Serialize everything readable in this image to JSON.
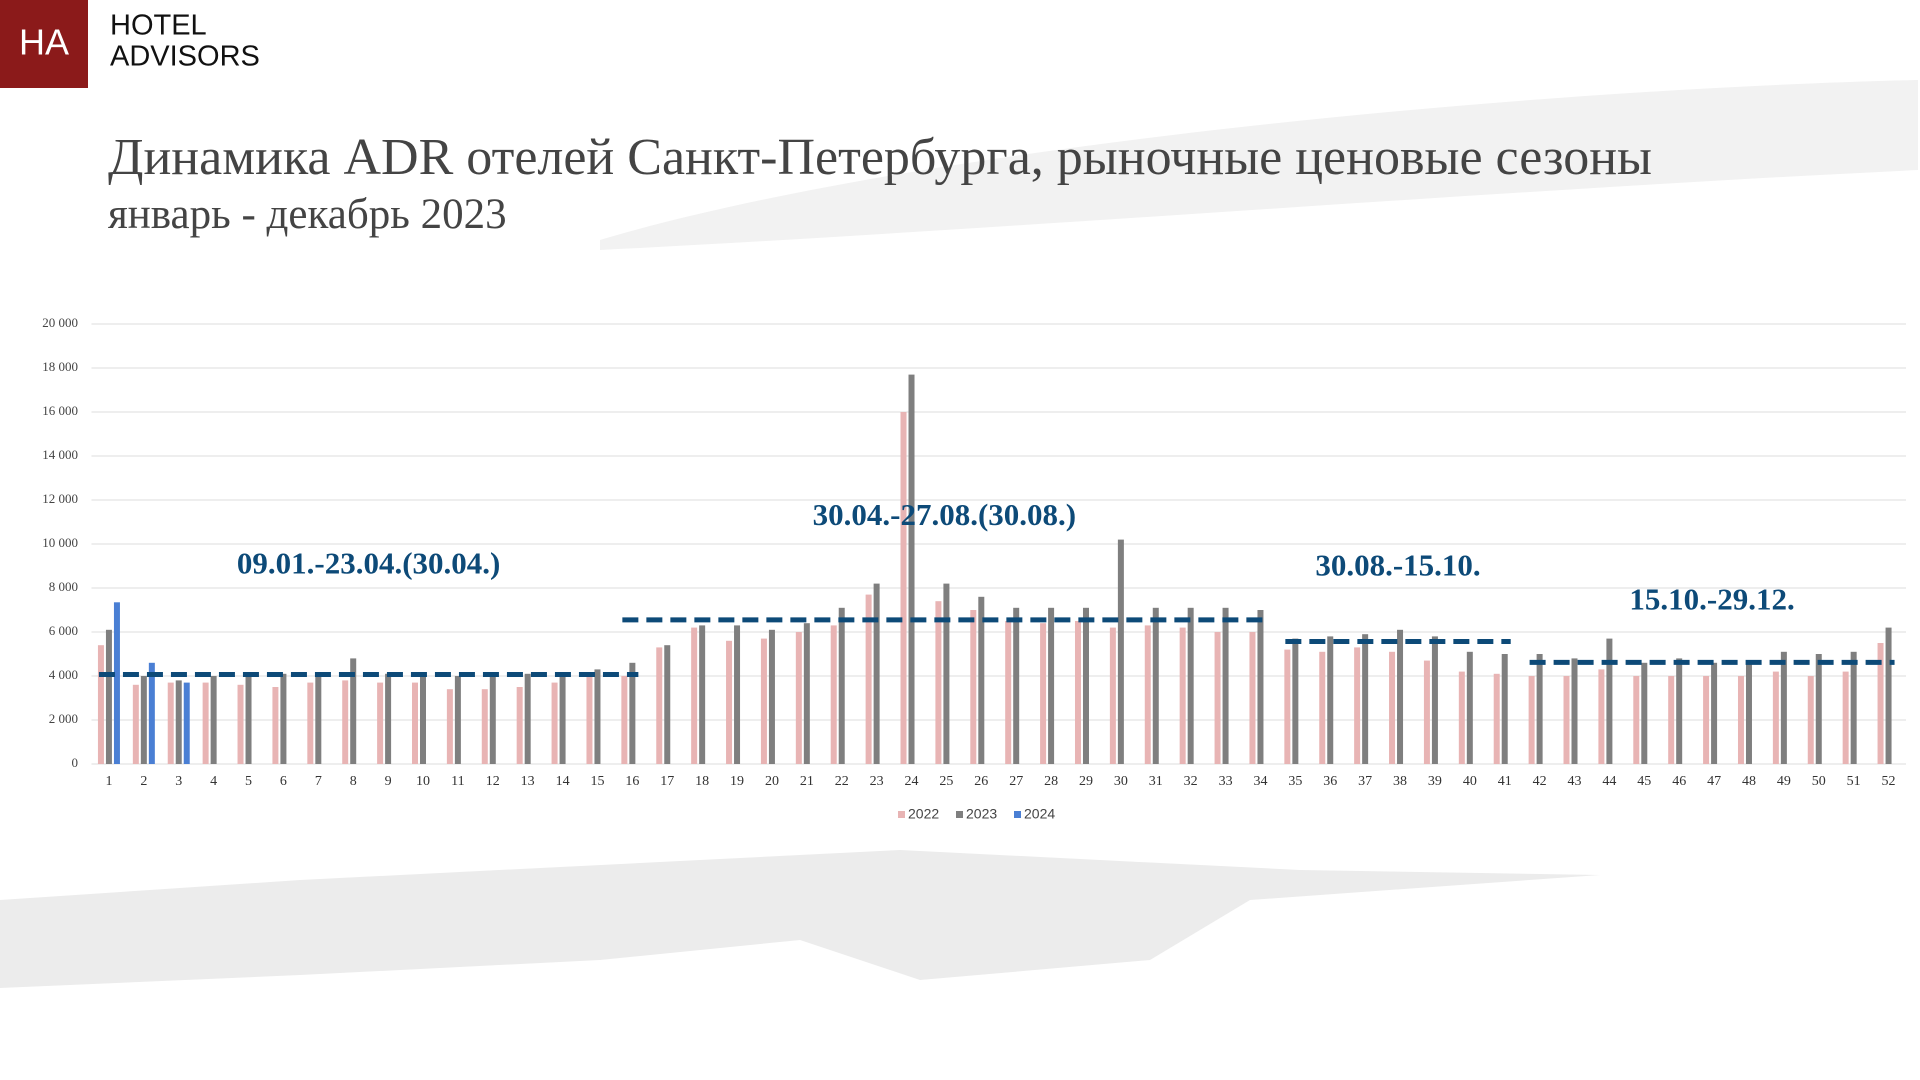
{
  "header": {
    "logo": "HA",
    "brand": [
      "HOTEL",
      "ADVISORS"
    ]
  },
  "chart_data": {
    "type": "bar",
    "title": "Динамика ADR отелей Санкт-Петербурга, рыночные ценовые сезоны",
    "subtitle": "январь - декабрь 2023",
    "categories": [
      "1",
      "2",
      "3",
      "4",
      "5",
      "6",
      "7",
      "8",
      "9",
      "10",
      "11",
      "12",
      "13",
      "14",
      "15",
      "16",
      "17",
      "18",
      "19",
      "20",
      "21",
      "22",
      "23",
      "24",
      "25",
      "26",
      "27",
      "28",
      "29",
      "30",
      "31",
      "32",
      "33",
      "34",
      "35",
      "36",
      "37",
      "38",
      "39",
      "40",
      "41",
      "42",
      "43",
      "44",
      "45",
      "46",
      "47",
      "48",
      "49",
      "50",
      "51",
      "52"
    ],
    "series": [
      {
        "name": "2022",
        "color": "#e8b4b4",
        "values": [
          5400,
          3600,
          3700,
          3700,
          3600,
          3500,
          3700,
          3800,
          3700,
          3700,
          3400,
          3400,
          3500,
          3700,
          4000,
          4000,
          5300,
          6200,
          5600,
          5700,
          6000,
          6300,
          7700,
          16000,
          7400,
          7000,
          6500,
          6400,
          6500,
          6200,
          6300,
          6200,
          6000,
          6000,
          5200,
          5100,
          5300,
          5100,
          4700,
          4200,
          4100,
          4000,
          4000,
          4300,
          4000,
          4000,
          4000,
          4000,
          4200,
          4000,
          4200,
          5500
        ]
      },
      {
        "name": "2023",
        "color": "#7f7f7f",
        "values": [
          6100,
          4000,
          3800,
          4000,
          4100,
          4100,
          4100,
          4800,
          4100,
          4100,
          4000,
          4000,
          4100,
          4100,
          4300,
          4600,
          5400,
          6300,
          6300,
          6100,
          6400,
          7100,
          8200,
          17700,
          8200,
          7600,
          7100,
          7100,
          7100,
          10200,
          7100,
          7100,
          7100,
          7000,
          5700,
          5800,
          5900,
          6100,
          5800,
          5100,
          5000,
          5000,
          4800,
          5700,
          4600,
          4800,
          4600,
          4600,
          5100,
          5000,
          5100,
          6200
        ]
      },
      {
        "name": "2024",
        "color": "#4a7fd4",
        "values": [
          7350,
          4600,
          3700,
          null,
          null,
          null,
          null,
          null,
          null,
          null,
          null,
          null,
          null,
          null,
          null,
          null,
          null,
          null,
          null,
          null,
          null,
          null,
          null,
          null,
          null,
          null,
          null,
          null,
          null,
          null,
          null,
          null,
          null,
          null,
          null,
          null,
          null,
          null,
          null,
          null,
          null,
          null,
          null,
          null,
          null,
          null,
          null,
          null,
          null,
          null,
          null,
          null
        ]
      }
    ],
    "seasons": [
      {
        "label": "09.01.-23.04.(30.04.)",
        "start": 1,
        "end": 16,
        "level": 4070
      },
      {
        "label": "30.04.-27.08.(30.08.)",
        "start": 16,
        "end": 34,
        "level": 6550
      },
      {
        "label": "30.08.-15.10.",
        "start": 35,
        "end": 41,
        "level": 5570
      },
      {
        "label": "15.10.-29.12.",
        "start": 42,
        "end": 52,
        "level": 4620
      }
    ],
    "season_color": "#0d4a78",
    "ylim": [
      0,
      20000
    ],
    "yticks": [
      0,
      {
        "value": 2000,
        "label": "2 000"
      },
      {
        "value": 4000,
        "label": "4 000"
      },
      {
        "value": 6000,
        "label": "6 000"
      },
      {
        "value": 8000,
        "label": "8 000"
      },
      {
        "value": 10000,
        "label": "10 000"
      },
      {
        "value": 12000,
        "label": "12 000"
      },
      {
        "value": 14000,
        "label": "14 000"
      },
      {
        "value": 16000,
        "label": "16 000"
      },
      {
        "value": 18000,
        "label": "18 000"
      },
      {
        "value": 20000,
        "label": "20 000"
      }
    ],
    "grid": true,
    "legend": "bottom"
  }
}
